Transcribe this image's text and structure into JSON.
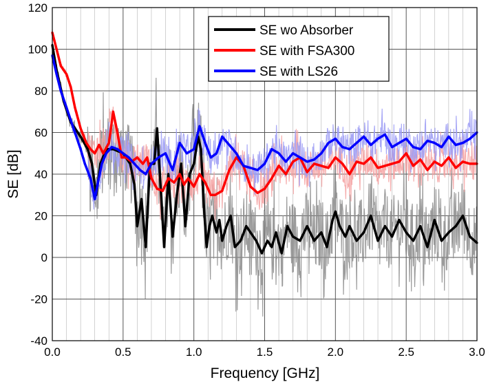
{
  "chart_data": {
    "type": "line",
    "xlabel": "Frequency [GHz]",
    "ylabel": "SE [dB]",
    "xlim": [
      0,
      3.0
    ],
    "ylim": [
      -40,
      120
    ],
    "xticks": [
      0,
      0.5,
      1.0,
      1.5,
      2.0,
      2.5,
      3.0
    ],
    "xtick_labels": [
      "0.0",
      "0.5",
      "1.0",
      "1.5",
      "2.0",
      "2.5",
      "3.0"
    ],
    "yticks": [
      -40,
      -20,
      0,
      20,
      40,
      60,
      80,
      100,
      120
    ],
    "ytick_labels": [
      "-40",
      "-20",
      "0",
      "20",
      "40",
      "60",
      "80",
      "100",
      "120"
    ],
    "grid": true,
    "minor_grid": "x",
    "legend_position": "top-right",
    "series": [
      {
        "name": "SE wo Absorber",
        "color": "#000000",
        "raw_color": "#8a8a8a",
        "x": [
          0,
          0.03,
          0.08,
          0.13,
          0.2,
          0.25,
          0.28,
          0.31,
          0.34,
          0.38,
          0.43,
          0.5,
          0.55,
          0.58,
          0.6,
          0.63,
          0.66,
          0.69,
          0.72,
          0.74,
          0.76,
          0.79,
          0.82,
          0.85,
          0.88,
          0.91,
          0.94,
          0.97,
          1.0,
          1.03,
          1.05,
          1.07,
          1.09,
          1.11,
          1.13,
          1.16,
          1.18,
          1.2,
          1.23,
          1.26,
          1.29,
          1.33,
          1.37,
          1.4,
          1.44,
          1.48,
          1.52,
          1.55,
          1.58,
          1.62,
          1.66,
          1.7,
          1.75,
          1.8,
          1.85,
          1.9,
          1.94,
          1.98,
          2.0,
          2.03,
          2.07,
          2.1,
          2.15,
          2.2,
          2.25,
          2.3,
          2.35,
          2.4,
          2.45,
          2.5,
          2.55,
          2.6,
          2.65,
          2.7,
          2.75,
          2.8,
          2.85,
          2.9,
          2.95,
          3.0
        ],
        "values": [
          102,
          90,
          75,
          65,
          58,
          52,
          45,
          30,
          45,
          52,
          52,
          50,
          45,
          35,
          15,
          28,
          5,
          45,
          45,
          62,
          40,
          5,
          40,
          10,
          30,
          45,
          15,
          40,
          45,
          58,
          52,
          25,
          5,
          15,
          20,
          12,
          18,
          8,
          15,
          20,
          5,
          8,
          15,
          12,
          8,
          2,
          8,
          5,
          12,
          2,
          15,
          10,
          8,
          15,
          8,
          12,
          5,
          18,
          22,
          15,
          10,
          15,
          8,
          12,
          20,
          8,
          15,
          10,
          18,
          12,
          8,
          15,
          5,
          18,
          8,
          12,
          15,
          20,
          10,
          7
        ]
      },
      {
        "name": "SE with FSA300",
        "color": "#ff0000",
        "raw_color": "#f4a0a0",
        "x": [
          0,
          0.03,
          0.06,
          0.1,
          0.13,
          0.16,
          0.2,
          0.24,
          0.27,
          0.3,
          0.33,
          0.36,
          0.4,
          0.43,
          0.46,
          0.49,
          0.52,
          0.56,
          0.6,
          0.64,
          0.67,
          0.7,
          0.74,
          0.78,
          0.82,
          0.86,
          0.9,
          0.93,
          0.96,
          1.0,
          1.04,
          1.08,
          1.12,
          1.15,
          1.2,
          1.25,
          1.3,
          1.35,
          1.4,
          1.45,
          1.5,
          1.55,
          1.6,
          1.65,
          1.7,
          1.75,
          1.8,
          1.85,
          1.9,
          1.95,
          2.0,
          2.05,
          2.1,
          2.15,
          2.2,
          2.25,
          2.3,
          2.35,
          2.4,
          2.45,
          2.5,
          2.55,
          2.6,
          2.65,
          2.7,
          2.75,
          2.8,
          2.85,
          2.9,
          2.95,
          3.0
        ],
        "values": [
          108,
          100,
          92,
          88,
          82,
          72,
          62,
          55,
          52,
          50,
          54,
          50,
          55,
          70,
          60,
          48,
          48,
          46,
          48,
          45,
          48,
          38,
          33,
          32,
          38,
          36,
          40,
          35,
          38,
          34,
          40,
          36,
          30,
          30,
          32,
          42,
          48,
          44,
          34,
          31,
          33,
          38,
          44,
          40,
          46,
          48,
          41,
          45,
          44,
          43,
          48,
          45,
          40,
          46,
          45,
          48,
          43,
          44,
          45,
          46,
          50,
          44,
          47,
          42,
          46,
          44,
          48,
          43,
          46,
          45,
          45
        ]
      },
      {
        "name": "SE with LS26",
        "color": "#0000ff",
        "raw_color": "#9a9af4",
        "x": [
          0,
          0.03,
          0.06,
          0.1,
          0.13,
          0.16,
          0.2,
          0.23,
          0.27,
          0.3,
          0.32,
          0.35,
          0.38,
          0.42,
          0.46,
          0.5,
          0.54,
          0.58,
          0.62,
          0.66,
          0.7,
          0.75,
          0.8,
          0.85,
          0.9,
          0.95,
          1.0,
          1.04,
          1.08,
          1.12,
          1.16,
          1.2,
          1.25,
          1.3,
          1.35,
          1.4,
          1.45,
          1.5,
          1.55,
          1.6,
          1.65,
          1.7,
          1.75,
          1.8,
          1.85,
          1.9,
          1.95,
          2.0,
          2.05,
          2.1,
          2.15,
          2.2,
          2.25,
          2.3,
          2.35,
          2.4,
          2.45,
          2.5,
          2.55,
          2.6,
          2.65,
          2.7,
          2.75,
          2.8,
          2.85,
          2.9,
          2.95,
          3.0
        ],
        "values": [
          97,
          88,
          80,
          72,
          66,
          60,
          52,
          45,
          38,
          28,
          35,
          45,
          50,
          53,
          52,
          50,
          48,
          45,
          42,
          40,
          45,
          48,
          50,
          42,
          55,
          50,
          52,
          63,
          55,
          48,
          50,
          58,
          54,
          50,
          44,
          43,
          42,
          45,
          52,
          50,
          46,
          50,
          48,
          46,
          47,
          50,
          55,
          57,
          53,
          52,
          55,
          58,
          54,
          57,
          59,
          53,
          55,
          57,
          53,
          52,
          56,
          55,
          53,
          58,
          54,
          55,
          57,
          60
        ]
      }
    ]
  }
}
